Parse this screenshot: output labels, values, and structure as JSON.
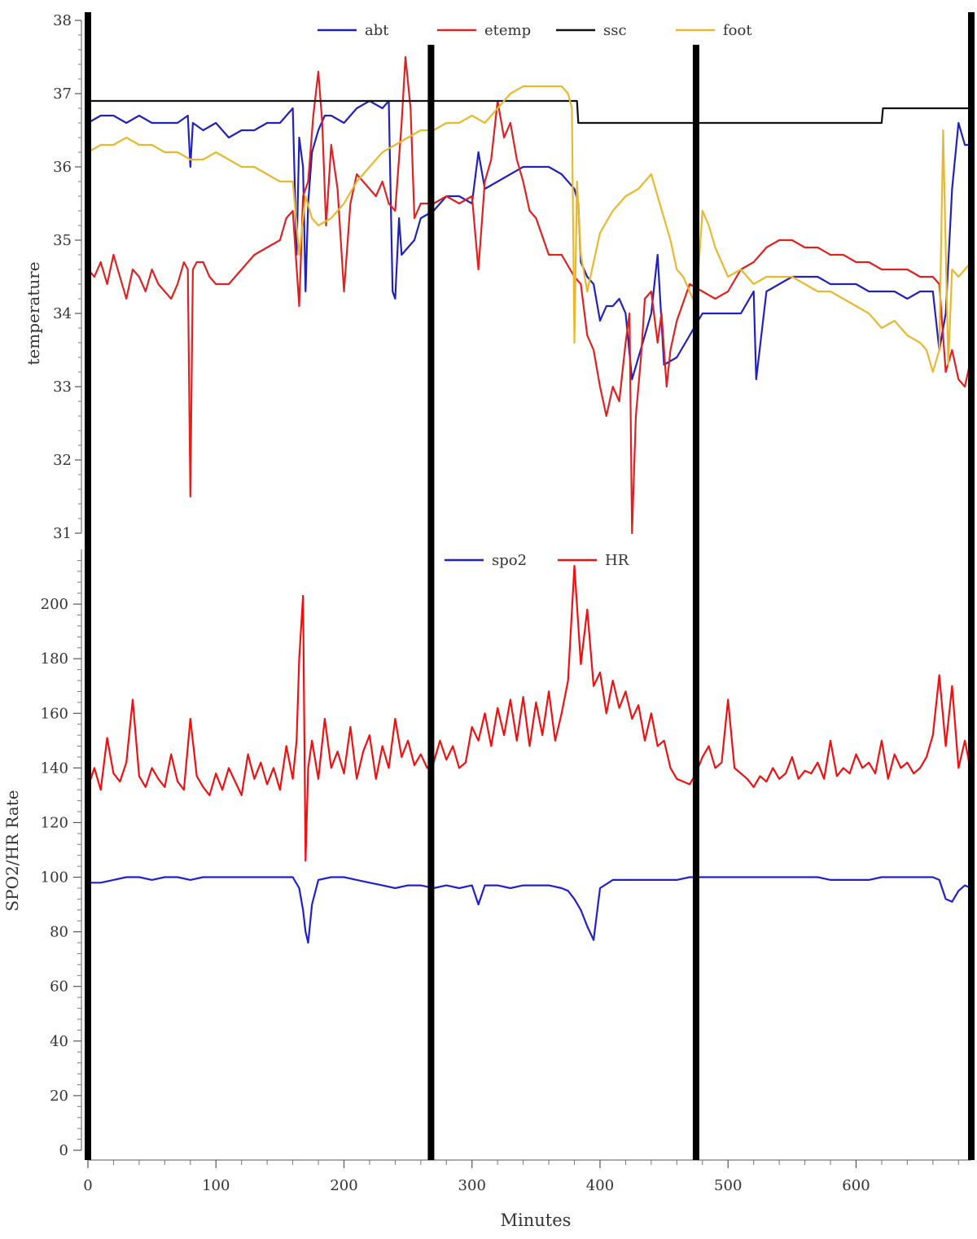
{
  "chart_data": [
    {
      "type": "line",
      "title": "",
      "xlabel": "",
      "ylabel": "temperature",
      "xlim": [
        0,
        690
      ],
      "ylim": [
        31,
        38
      ],
      "yticks": [
        "31",
        "32",
        "33",
        "34",
        "35",
        "36",
        "37",
        "38"
      ],
      "legend_position": "top-center",
      "grid": false,
      "series": [
        {
          "name": "abt",
          "color": "#2222bb",
          "x": [
            0,
            10,
            20,
            30,
            40,
            50,
            60,
            70,
            78,
            80,
            82,
            90,
            100,
            110,
            120,
            130,
            140,
            150,
            160,
            163,
            165,
            168,
            170,
            172,
            175,
            180,
            185,
            190,
            200,
            210,
            220,
            230,
            235,
            238,
            240,
            243,
            245,
            250,
            255,
            260,
            270,
            280,
            290,
            300,
            305,
            310,
            320,
            330,
            340,
            350,
            360,
            370,
            380,
            383,
            385,
            390,
            395,
            400,
            405,
            410,
            415,
            420,
            425,
            430,
            440,
            445,
            450,
            460,
            470,
            480,
            490,
            500,
            510,
            520,
            522,
            530,
            540,
            550,
            560,
            570,
            580,
            590,
            600,
            610,
            620,
            630,
            640,
            650,
            660,
            665,
            670,
            675,
            680,
            685,
            690
          ],
          "y": [
            36.6,
            36.7,
            36.7,
            36.6,
            36.7,
            36.6,
            36.6,
            36.6,
            36.7,
            36.0,
            36.6,
            36.5,
            36.6,
            36.4,
            36.5,
            36.5,
            36.6,
            36.6,
            36.8,
            34.8,
            36.4,
            36.0,
            34.3,
            35.5,
            36.2,
            36.5,
            36.7,
            36.7,
            36.6,
            36.8,
            36.9,
            36.8,
            36.9,
            34.3,
            34.2,
            35.3,
            34.8,
            34.9,
            35.0,
            35.3,
            35.4,
            35.6,
            35.6,
            35.5,
            36.2,
            35.7,
            35.8,
            35.9,
            36.0,
            36.0,
            36.0,
            35.9,
            35.7,
            35.5,
            34.7,
            34.5,
            34.4,
            33.9,
            34.1,
            34.1,
            34.2,
            34.0,
            33.1,
            33.4,
            34.0,
            34.8,
            33.3,
            33.4,
            33.7,
            34.0,
            34.0,
            34.0,
            34.0,
            34.3,
            33.1,
            34.3,
            34.4,
            34.5,
            34.5,
            34.5,
            34.4,
            34.4,
            34.4,
            34.3,
            34.3,
            34.3,
            34.2,
            34.3,
            34.3,
            33.5,
            34.0,
            35.7,
            36.6,
            36.3,
            36.3
          ]
        },
        {
          "name": "etemp",
          "color": "#dd2222",
          "x": [
            0,
            5,
            10,
            15,
            20,
            25,
            30,
            35,
            40,
            45,
            50,
            55,
            60,
            65,
            70,
            75,
            78,
            80,
            82,
            85,
            90,
            95,
            100,
            110,
            120,
            130,
            140,
            150,
            155,
            160,
            165,
            168,
            172,
            176,
            180,
            183,
            186,
            190,
            195,
            200,
            205,
            210,
            215,
            220,
            225,
            230,
            235,
            240,
            245,
            248,
            252,
            255,
            260,
            270,
            280,
            290,
            300,
            305,
            310,
            315,
            320,
            325,
            330,
            335,
            340,
            345,
            350,
            360,
            370,
            380,
            385,
            390,
            395,
            400,
            405,
            410,
            415,
            420,
            423,
            425,
            428,
            432,
            435,
            440,
            445,
            448,
            452,
            455,
            460,
            470,
            480,
            490,
            500,
            510,
            520,
            530,
            540,
            550,
            560,
            570,
            580,
            590,
            600,
            610,
            620,
            630,
            640,
            650,
            660,
            665,
            670,
            675,
            680,
            685,
            690
          ],
          "y": [
            34.6,
            34.5,
            34.7,
            34.4,
            34.8,
            34.5,
            34.2,
            34.6,
            34.5,
            34.3,
            34.6,
            34.4,
            34.3,
            34.2,
            34.4,
            34.7,
            34.6,
            31.5,
            34.6,
            34.7,
            34.7,
            34.5,
            34.4,
            34.4,
            34.6,
            34.8,
            34.9,
            35.0,
            35.3,
            35.4,
            34.1,
            35.6,
            35.8,
            36.7,
            37.3,
            36.6,
            35.2,
            36.3,
            35.7,
            34.3,
            35.5,
            35.9,
            35.8,
            35.7,
            35.6,
            35.8,
            35.5,
            35.4,
            36.6,
            37.5,
            36.8,
            35.3,
            35.5,
            35.5,
            35.6,
            35.5,
            35.6,
            34.6,
            35.8,
            36.1,
            36.9,
            36.4,
            36.6,
            36.1,
            35.8,
            35.4,
            35.3,
            34.8,
            34.8,
            34.5,
            34.4,
            33.7,
            33.5,
            33.0,
            32.6,
            33.0,
            32.8,
            33.6,
            34.0,
            31.0,
            32.6,
            33.4,
            34.2,
            34.3,
            33.6,
            34.0,
            33.0,
            33.5,
            33.9,
            34.4,
            34.3,
            34.2,
            34.3,
            34.6,
            34.7,
            34.9,
            35.0,
            35.0,
            34.9,
            34.9,
            34.8,
            34.8,
            34.7,
            34.7,
            34.6,
            34.6,
            34.6,
            34.5,
            34.5,
            34.4,
            33.2,
            33.5,
            33.1,
            33.0,
            33.4
          ]
        },
        {
          "name": "ssc",
          "color": "#111111",
          "x": [
            0,
            382,
            383,
            620,
            621,
            690
          ],
          "y": [
            36.9,
            36.9,
            36.6,
            36.6,
            36.8,
            36.8
          ]
        },
        {
          "name": "foot",
          "color": "#e8b830",
          "x": [
            0,
            10,
            20,
            30,
            40,
            50,
            60,
            70,
            80,
            90,
            100,
            110,
            120,
            130,
            140,
            150,
            160,
            165,
            168,
            170,
            175,
            180,
            190,
            200,
            210,
            220,
            230,
            240,
            250,
            260,
            270,
            280,
            290,
            300,
            310,
            320,
            330,
            340,
            350,
            360,
            370,
            375,
            378,
            380,
            382,
            385,
            390,
            395,
            400,
            410,
            420,
            430,
            440,
            445,
            450,
            455,
            460,
            465,
            470,
            475,
            480,
            485,
            490,
            500,
            510,
            520,
            530,
            540,
            550,
            560,
            570,
            580,
            590,
            600,
            610,
            620,
            630,
            640,
            650,
            655,
            660,
            665,
            668,
            672,
            675,
            680,
            690
          ],
          "y": [
            36.2,
            36.3,
            36.3,
            36.4,
            36.3,
            36.3,
            36.2,
            36.2,
            36.1,
            36.1,
            36.2,
            36.1,
            36.0,
            36.0,
            35.9,
            35.8,
            35.8,
            34.8,
            35.3,
            35.6,
            35.3,
            35.2,
            35.3,
            35.5,
            35.8,
            36.0,
            36.2,
            36.3,
            36.4,
            36.5,
            36.5,
            36.6,
            36.6,
            36.7,
            36.6,
            36.8,
            37.0,
            37.1,
            37.1,
            37.1,
            37.1,
            37.0,
            36.8,
            33.6,
            35.8,
            34.8,
            34.3,
            34.7,
            35.1,
            35.4,
            35.6,
            35.7,
            35.9,
            35.6,
            35.3,
            35.0,
            34.6,
            34.5,
            34.3,
            34.1,
            35.4,
            35.2,
            34.9,
            34.5,
            34.6,
            34.4,
            34.5,
            34.5,
            34.5,
            34.4,
            34.3,
            34.3,
            34.2,
            34.1,
            34.0,
            33.8,
            33.9,
            33.7,
            33.6,
            33.5,
            33.2,
            33.5,
            36.5,
            33.3,
            34.6,
            34.5,
            34.7
          ]
        }
      ]
    },
    {
      "type": "line",
      "title": "",
      "xlabel": "Minutes",
      "ylabel": "SPO2/HR Rate",
      "xlim": [
        0,
        690
      ],
      "ylim": [
        0,
        220
      ],
      "xticks": [
        "0",
        "100",
        "200",
        "300",
        "400",
        "500",
        "600"
      ],
      "yticks": [
        "0",
        "20",
        "40",
        "60",
        "80",
        "100",
        "120",
        "140",
        "160",
        "180",
        "200"
      ],
      "legend_position": "top-center",
      "grid": false,
      "series": [
        {
          "name": "spo2",
          "color": "#2020cc",
          "x": [
            0,
            10,
            20,
            30,
            40,
            50,
            60,
            70,
            80,
            90,
            100,
            110,
            120,
            130,
            140,
            150,
            160,
            165,
            168,
            170,
            172,
            175,
            180,
            190,
            200,
            210,
            220,
            230,
            240,
            250,
            260,
            270,
            280,
            290,
            300,
            305,
            310,
            320,
            330,
            340,
            350,
            360,
            370,
            375,
            380,
            385,
            390,
            393,
            395,
            400,
            410,
            420,
            430,
            440,
            450,
            460,
            470,
            480,
            490,
            500,
            510,
            520,
            530,
            540,
            550,
            560,
            570,
            580,
            590,
            600,
            610,
            620,
            630,
            640,
            650,
            660,
            665,
            670,
            675,
            680,
            685,
            690
          ],
          "y": [
            98,
            98,
            99,
            100,
            100,
            99,
            100,
            100,
            99,
            100,
            100,
            100,
            100,
            100,
            100,
            100,
            100,
            96,
            88,
            80,
            76,
            90,
            99,
            100,
            100,
            99,
            98,
            97,
            96,
            97,
            97,
            96,
            97,
            96,
            97,
            90,
            97,
            97,
            96,
            97,
            97,
            97,
            96,
            95,
            92,
            88,
            82,
            79,
            77,
            96,
            99,
            99,
            99,
            99,
            99,
            99,
            100,
            100,
            100,
            100,
            100,
            100,
            100,
            100,
            100,
            100,
            100,
            99,
            99,
            99,
            99,
            100,
            100,
            100,
            100,
            100,
            99,
            92,
            91,
            95,
            97,
            96
          ]
        },
        {
          "name": "HR",
          "color": "#ee1111",
          "x": [
            0,
            5,
            10,
            15,
            20,
            25,
            30,
            35,
            40,
            45,
            50,
            55,
            60,
            65,
            70,
            75,
            80,
            85,
            90,
            95,
            100,
            105,
            110,
            115,
            120,
            125,
            130,
            135,
            140,
            145,
            150,
            155,
            160,
            163,
            165,
            168,
            170,
            172,
            175,
            180,
            185,
            190,
            195,
            200,
            205,
            210,
            215,
            220,
            225,
            230,
            235,
            240,
            245,
            250,
            255,
            260,
            265,
            270,
            275,
            280,
            285,
            290,
            295,
            300,
            305,
            310,
            315,
            320,
            325,
            330,
            335,
            340,
            345,
            350,
            355,
            360,
            365,
            370,
            375,
            380,
            385,
            390,
            395,
            400,
            405,
            410,
            415,
            420,
            425,
            430,
            435,
            440,
            445,
            450,
            455,
            460,
            465,
            470,
            475,
            480,
            485,
            490,
            495,
            500,
            505,
            510,
            515,
            520,
            525,
            530,
            535,
            540,
            545,
            550,
            555,
            560,
            565,
            570,
            575,
            580,
            585,
            590,
            595,
            600,
            605,
            610,
            615,
            620,
            625,
            630,
            635,
            640,
            645,
            650,
            655,
            660,
            665,
            670,
            675,
            680,
            685,
            690
          ],
          "y": [
            133,
            140,
            132,
            151,
            138,
            135,
            142,
            165,
            137,
            133,
            140,
            136,
            133,
            145,
            135,
            132,
            158,
            137,
            133,
            130,
            138,
            132,
            140,
            135,
            130,
            145,
            136,
            142,
            134,
            140,
            132,
            148,
            136,
            150,
            180,
            203,
            106,
            140,
            150,
            136,
            158,
            140,
            146,
            138,
            155,
            136,
            146,
            152,
            136,
            148,
            140,
            158,
            144,
            150,
            141,
            145,
            140,
            142,
            150,
            143,
            148,
            140,
            142,
            155,
            150,
            160,
            148,
            162,
            152,
            165,
            150,
            166,
            148,
            164,
            152,
            168,
            150,
            160,
            172,
            214,
            178,
            198,
            170,
            175,
            160,
            172,
            162,
            168,
            158,
            163,
            150,
            160,
            148,
            150,
            140,
            136,
            135,
            134,
            138,
            144,
            148,
            140,
            142,
            165,
            140,
            138,
            136,
            133,
            137,
            135,
            140,
            136,
            138,
            144,
            136,
            139,
            138,
            142,
            136,
            150,
            137,
            140,
            138,
            145,
            140,
            142,
            138,
            150,
            136,
            145,
            140,
            142,
            138,
            140,
            144,
            152,
            174,
            148,
            170,
            140,
            150,
            138
          ]
        }
      ]
    }
  ],
  "dividers_x": [
    0,
    268,
    475,
    690
  ]
}
